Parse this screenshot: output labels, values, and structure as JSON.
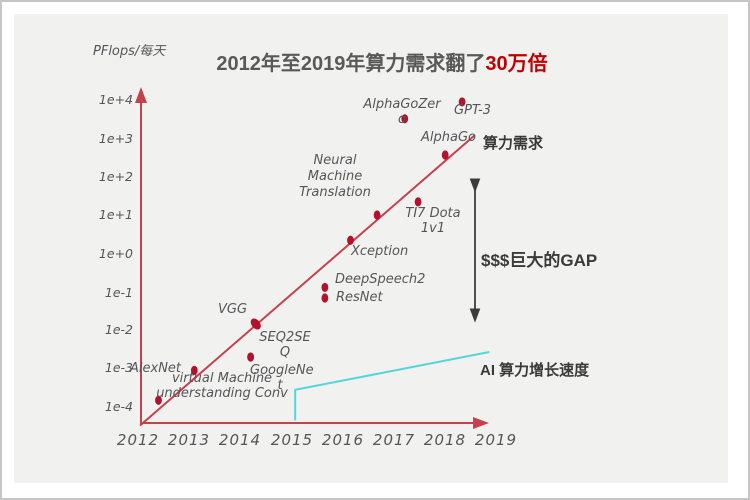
{
  "title": {
    "prefix": "2012年至2019年算力需求翻了",
    "highlight": "30万倍"
  },
  "y_axis": {
    "label": "PFlops/每天",
    "ticks": [
      "1e+4",
      "1e+3",
      "1e+2",
      "1e+1",
      "1e+0",
      "1e-1",
      "1e-2",
      "1e-3",
      "1e-4"
    ]
  },
  "x_axis": {
    "ticks": [
      "2012",
      "2013",
      "2014",
      "2015",
      "2016",
      "2017",
      "2018",
      "2019"
    ]
  },
  "annotations": {
    "demand": "算力需求",
    "gap": "$$$巨大的GAP",
    "growth": "AI 算力增长速度"
  },
  "colors": {
    "line_red": "#c5414c",
    "dot_red": "#b3122c",
    "title_red": "#c00000",
    "cyan": "#52d5dc",
    "text_gray": "#595959",
    "dark_text": "#3a3a3a",
    "panel_bg": "#f1f1ef",
    "arrow_dark": "#3c3c3c"
  },
  "chart_data": {
    "type": "scatter",
    "title": "2012年至2019年算力需求翻了30万倍",
    "xlabel": "",
    "ylabel": "PFlops/每天",
    "y_scale": "log",
    "ylim": [
      "1e-4",
      "1e+4"
    ],
    "xlim": [
      2012,
      2019
    ],
    "grid": false,
    "points": [
      {
        "name": "virtual Machine understanding Conv",
        "display": "virtual Machine\nunderstanding Conv",
        "year": 2012.4,
        "pflops_per_day": 0.00015
      },
      {
        "name": "AlexNet",
        "display": "AlexNet",
        "year": 2013.1,
        "pflops_per_day": 0.0009
      },
      {
        "name": "VGG",
        "display": "VGG",
        "year": 2014.3,
        "pflops_per_day": 0.0145,
        "wide_dot": true
      },
      {
        "name": "SEQ2SEQ",
        "display": "SEQ2SE\nQ",
        "year": 2014.2,
        "pflops_per_day": 0.002
      },
      {
        "name": "GoogleNet",
        "display": "GoogleNe\nt",
        "year": 2014.2,
        "pflops_per_day": 0.002
      },
      {
        "name": "DeepSpeech2",
        "display": "DeepSpeech2",
        "year": 2015.65,
        "pflops_per_day": 0.13
      },
      {
        "name": "ResNet",
        "display": "ResNet",
        "year": 2015.65,
        "pflops_per_day": 0.069
      },
      {
        "name": "Xception",
        "display": "Xception",
        "year": 2016.15,
        "pflops_per_day": 2.2
      },
      {
        "name": "Neural Machine Translation",
        "display": "Neural\nMachine\nTranslation",
        "year": 2016.67,
        "pflops_per_day": 10
      },
      {
        "name": "TI7 Dota 1v1",
        "display": "TI7 Dota\n1v1",
        "year": 2017.47,
        "pflops_per_day": 22
      },
      {
        "name": "AlphaGo",
        "display": "AlphaGo",
        "year": 2018.0,
        "pflops_per_day": 365
      },
      {
        "name": "AlphaGoZero",
        "display": "AlphaGoZer\no",
        "year": 2017.21,
        "pflops_per_day": 3200
      },
      {
        "name": "GPT-3",
        "display": "GPT-3",
        "year": 2018.33,
        "pflops_per_day": 8800
      }
    ],
    "trend_line": {
      "name": "算力需求",
      "points": [
        [
          2012.04,
          3.3e-05
        ],
        [
          2018.58,
          1200
        ]
      ]
    },
    "growth_line": {
      "name": "AI 算力增长速度",
      "points": [
        [
          2015.07,
          4.5e-05
        ],
        [
          2015.07,
          0.00028
        ],
        [
          2018.86,
          0.0027
        ]
      ]
    }
  }
}
